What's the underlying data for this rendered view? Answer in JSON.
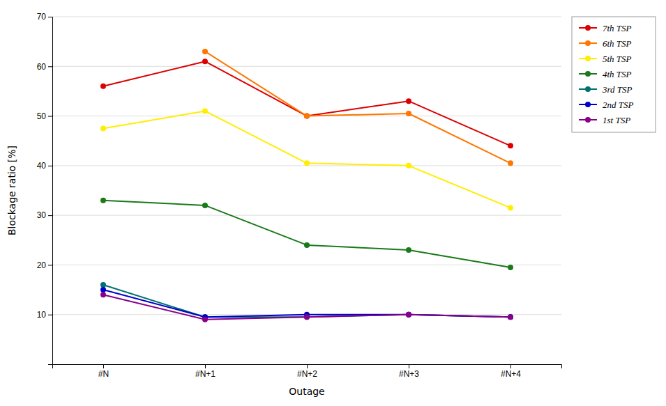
{
  "chart_data": {
    "type": "line",
    "categories": [
      "#N",
      "#N+1",
      "#N+2",
      "#N+3",
      "#N+4"
    ],
    "series": [
      {
        "name": "7th TSP",
        "color": "#dd0000",
        "values": [
          56,
          61,
          50,
          53,
          44
        ]
      },
      {
        "name": "6th TSP",
        "color": "#ff7700",
        "values": [
          null,
          63,
          50,
          50.5,
          40.5
        ]
      },
      {
        "name": "5th TSP",
        "color": "#ffee00",
        "values": [
          47.5,
          51,
          40.5,
          40,
          31.5
        ]
      },
      {
        "name": "4th TSP",
        "color": "#1a7a1a",
        "values": [
          33,
          32,
          24,
          23,
          19.5
        ]
      },
      {
        "name": "3rd TSP",
        "color": "#007070",
        "values": [
          16,
          9.5,
          9.5,
          10,
          9.5
        ]
      },
      {
        "name": "2nd TSP",
        "color": "#0000cc",
        "values": [
          15,
          9.5,
          10,
          10,
          9.5
        ]
      },
      {
        "name": "1st TSP",
        "color": "#880088",
        "values": [
          14,
          9,
          9.5,
          10,
          9.5
        ]
      }
    ],
    "x_label": "Outage",
    "y_label": "Blockage ratio [%]",
    "ylim": [
      0,
      70
    ],
    "yticks": [
      10,
      20,
      30,
      40,
      50,
      60,
      70
    ],
    "grid": true,
    "legend": "right",
    "marker": "circle"
  }
}
